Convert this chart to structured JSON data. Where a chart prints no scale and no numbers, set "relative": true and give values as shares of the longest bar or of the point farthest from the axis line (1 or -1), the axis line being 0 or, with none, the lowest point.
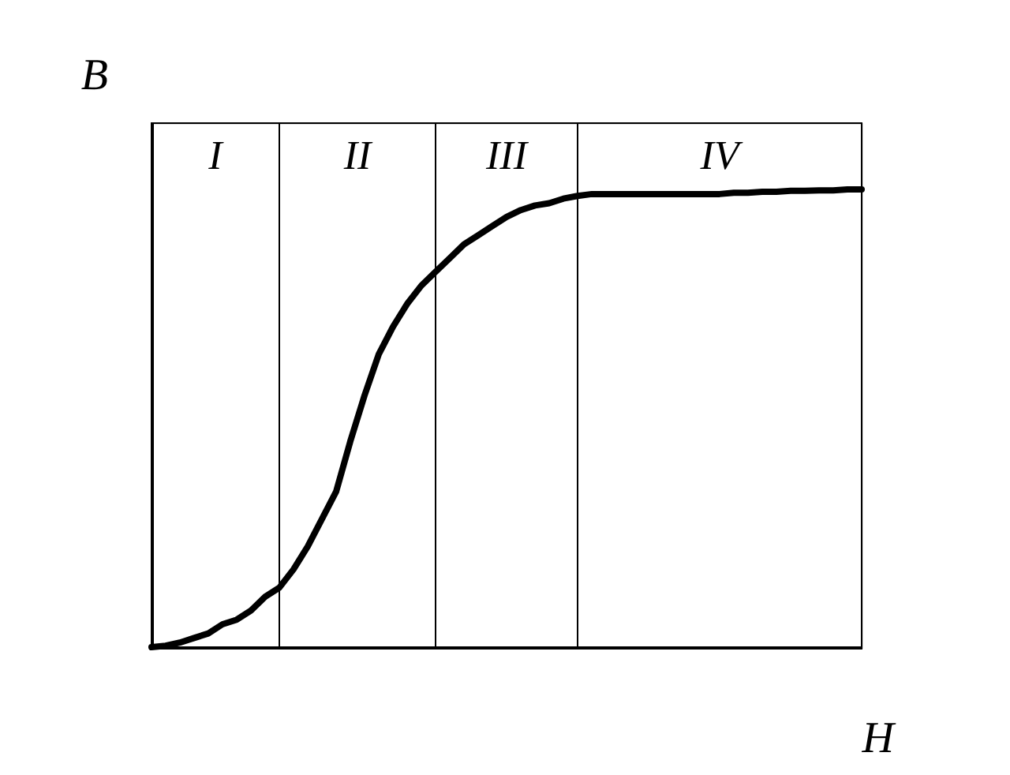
{
  "chart_data": {
    "type": "line",
    "relative": true,
    "xlabel": "H",
    "ylabel": "B",
    "grid": false,
    "legend": false,
    "marker": "none",
    "line_style": "solid",
    "categories": [
      null,
      null,
      null,
      null,
      null,
      null,
      null,
      null,
      null,
      null,
      null,
      null,
      null,
      null,
      null,
      null,
      null,
      null,
      null,
      null,
      null,
      null,
      null,
      null,
      null,
      null,
      null,
      null,
      null,
      null,
      null,
      null,
      null,
      null,
      null,
      null,
      null,
      null,
      null,
      null,
      null,
      null,
      null,
      null,
      null,
      null,
      null,
      null,
      null,
      null,
      null
    ],
    "series": [
      {
        "color": "#000000",
        "values": [
          0,
          0.003,
          0.01,
          0.02,
          0.03,
          0.05,
          0.06,
          0.08,
          0.11,
          0.13,
          0.17,
          0.22,
          0.28,
          0.34,
          0.45,
          0.55,
          0.64,
          0.7,
          0.75,
          0.79,
          0.82,
          0.85,
          0.88,
          0.9,
          0.92,
          0.94,
          0.955,
          0.965,
          0.97,
          0.98,
          0.986,
          0.99,
          0.99,
          0.99,
          0.99,
          0.99,
          0.99,
          0.99,
          0.99,
          0.99,
          0.99,
          0.993,
          0.993,
          0.995,
          0.995,
          0.997,
          0.997,
          0.998,
          0.998,
          1,
          1
        ]
      }
    ],
    "annotations": [
      "I",
      "II",
      "III",
      "IV"
    ]
  }
}
